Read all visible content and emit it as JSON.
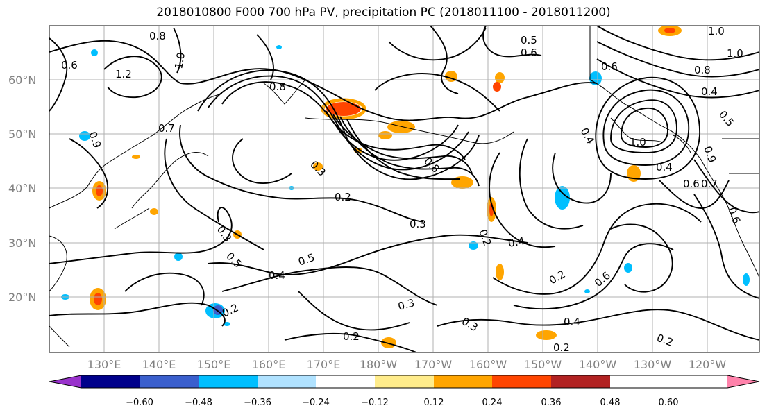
{
  "title": "2018010800 F000 700 hPa PV, precipitation PC (2018011100 - 2018011200)",
  "lat_labels": [
    "60°N",
    "50°N",
    "40°N",
    "30°N",
    "20°N"
  ],
  "lon_labels": [
    "130°E",
    "140°E",
    "150°E",
    "160°E",
    "170°E",
    "180°W",
    "170°W",
    "160°W",
    "150°W",
    "140°W",
    "130°W",
    "120°W"
  ],
  "colorbar": {
    "colors": [
      "#9932cc",
      "#00008b",
      "#3a5fcd",
      "#00bfff",
      "#b0e2ff",
      "#ffffff",
      "#ffec8b",
      "#ffa500",
      "#ff4500",
      "#b22222",
      "#ff82ab"
    ],
    "tick_labels": [
      "−0.60",
      "−0.48",
      "−0.36",
      "−0.24",
      "−0.12",
      "0.12",
      "0.24",
      "0.36",
      "0.48",
      "0.60"
    ]
  },
  "contour_labels": [
    "0.8",
    "1.2",
    "1.0",
    "0.6",
    "0.7",
    "0.9",
    "0.5",
    "0.6",
    "0.8",
    "1.0",
    "1.0",
    "0.6",
    "0.8",
    "0.4",
    "0.5",
    "0.4",
    "0.6",
    "0.7",
    "0.9",
    "1.0",
    "0.3",
    "0.2",
    "0.8",
    "0.3",
    "0.3",
    "0.5",
    "0.4",
    "0.5",
    "0.2",
    "0.3",
    "0.4",
    "0.2",
    "0.3",
    "0.2",
    "0.4",
    "0.2",
    "0.2",
    "0.6",
    "0.2",
    "0.6",
    "0.4"
  ]
}
